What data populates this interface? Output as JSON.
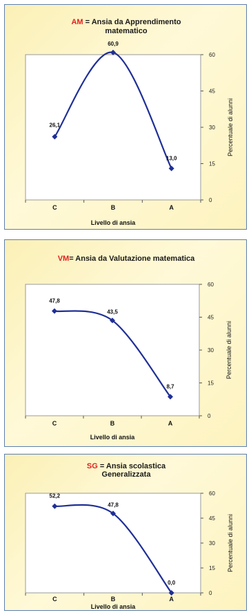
{
  "chart_data": [
    {
      "type": "line",
      "title_abbr": "AM",
      "title_rest": " = Ansia da Apprendimento",
      "title_line2": "matematico",
      "categories": [
        "C",
        "B",
        "A"
      ],
      "values": [
        26.1,
        60.9,
        13.0
      ],
      "data_labels": [
        "26,1",
        "60,9",
        "13,0"
      ],
      "xlabel": "Livello di ansia",
      "ylabel": "Percentuale di alunni",
      "ylim": [
        0,
        60
      ],
      "yticks": [
        "0",
        "15",
        "30",
        "45",
        "60"
      ],
      "grid": false,
      "colors": {
        "line": "#1f2f96",
        "abbr": "#e02020",
        "title": "#1a1a1a"
      }
    },
    {
      "type": "line",
      "title_abbr": "VM",
      "title_rest": "= Ansia da Valutazione matematica",
      "title_line2": "",
      "categories": [
        "C",
        "B",
        "A"
      ],
      "values": [
        47.8,
        43.5,
        8.7
      ],
      "data_labels": [
        "47,8",
        "43,5",
        "8,7"
      ],
      "xlabel": "Livello di ansia",
      "ylabel": "Percentuale di alunni",
      "ylim": [
        0,
        60
      ],
      "yticks": [
        "0",
        "15",
        "30",
        "45",
        "60"
      ],
      "grid": false,
      "colors": {
        "line": "#1f2f96",
        "abbr": "#e02020",
        "title": "#1a1a1a"
      }
    },
    {
      "type": "line",
      "title_abbr": "SG",
      "title_rest": " = Ansia scolastica",
      "title_line2": "Generalizzata",
      "categories": [
        "C",
        "B",
        "A"
      ],
      "values": [
        52.2,
        47.8,
        0.0
      ],
      "data_labels": [
        "52,2",
        "47,8",
        "0,0"
      ],
      "xlabel": "Livello di ansia",
      "ylabel": "Percentuale di alunni",
      "ylim": [
        0,
        60
      ],
      "yticks": [
        "0",
        "15",
        "30",
        "45",
        "60"
      ],
      "grid": false,
      "colors": {
        "line": "#1f2f96",
        "abbr": "#e02020",
        "title": "#1a1a1a"
      }
    }
  ]
}
